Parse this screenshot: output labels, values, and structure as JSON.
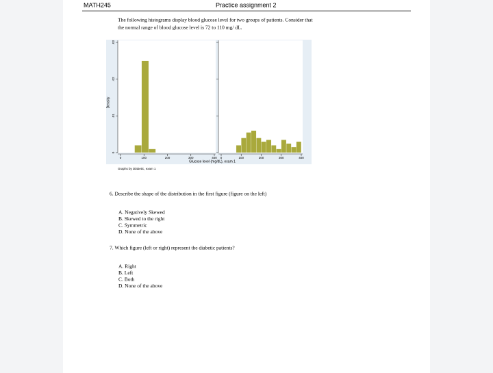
{
  "header": {
    "course": "MATH245",
    "title": "Practice assignment 2"
  },
  "intro": [
    "The following histograms display blood glucose level for two groups of patients. Consider that",
    "the normal range of blood glucose level is 72 to 110 mg/ dL."
  ],
  "figure": {
    "type": "histogram",
    "ylabel": "Density",
    "xlabel": "Glucose level (mg/dL), exam 1",
    "note": "Graphs by Diabetic, exam 1",
    "color": "#a9a93c",
    "ylim": [
      0,
      0.03
    ],
    "yticks": [
      0,
      {
        "value": 0.01,
        "label": ".01"
      },
      {
        "value": 0.02,
        "label": ".02"
      },
      {
        "value": 0.03,
        "label": ".03"
      }
    ],
    "xlim": [
      0,
      400
    ],
    "xticks": [
      0,
      100,
      200,
      300,
      400
    ],
    "panels": [
      {
        "bins": [
          60,
          90,
          120,
          150
        ],
        "values": [
          0.002,
          0.025,
          0.001
        ]
      },
      {
        "bins": [
          75,
          100,
          125,
          150,
          175,
          200,
          225,
          250,
          275,
          300,
          325,
          350,
          375,
          400
        ],
        "values": [
          0.002,
          0.004,
          0.0055,
          0.006,
          0.004,
          0.003,
          0.0035,
          0.002,
          0.001,
          0.0035,
          0.0025,
          0.0015,
          0.003
        ]
      }
    ]
  },
  "questions": [
    {
      "text": "6.  Describe the shape of the distribution in the first figure (figure on the left)",
      "options": [
        "A.  Negatively Skewed",
        "B.  Skewed to the right",
        "C.  Symmetric",
        "D.  None of the above"
      ]
    },
    {
      "text": "7.  Which figure (left or right) represent the diabetic patients?",
      "options": [
        "A.  Right",
        "B.  Left",
        "C.  Both",
        "D.  None of the above"
      ]
    }
  ]
}
